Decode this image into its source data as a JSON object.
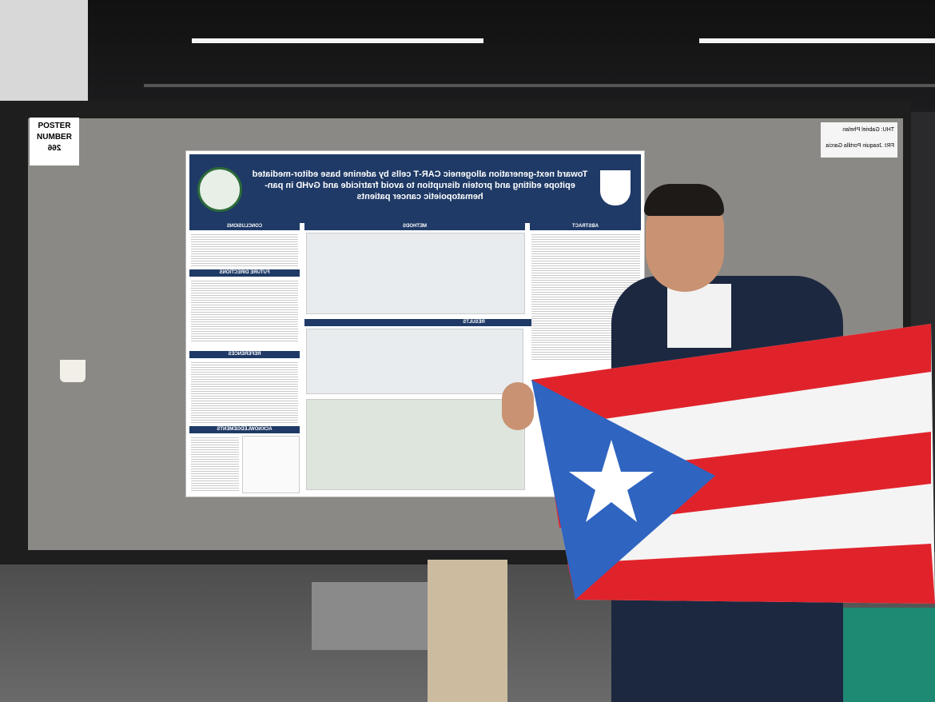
{
  "poster_sign": {
    "line1": "POSTER",
    "line2": "NUMBER",
    "number": 266
  },
  "name_card": {
    "lines": [
      "THU: Gabriel Phelan",
      "FRI: Joaquin Portilla Garcia"
    ]
  },
  "poster": {
    "title": "Toward next-generation allogeneic CAR-T cells by adenine base editor-mediated epitope editing and protein disruption to avoid fratricide and GvHD in pan-hematopoietic cancer patients",
    "sections": {
      "abstract": "ABSTRACT",
      "methods": "METHODS",
      "results": "RESULTS",
      "conclusions": "CONCLUSIONS",
      "future": "FUTURE DIRECTIONS",
      "references": "REFERENCES",
      "acknowledgements": "ACKNOWLEDGEMENTS"
    }
  }
}
